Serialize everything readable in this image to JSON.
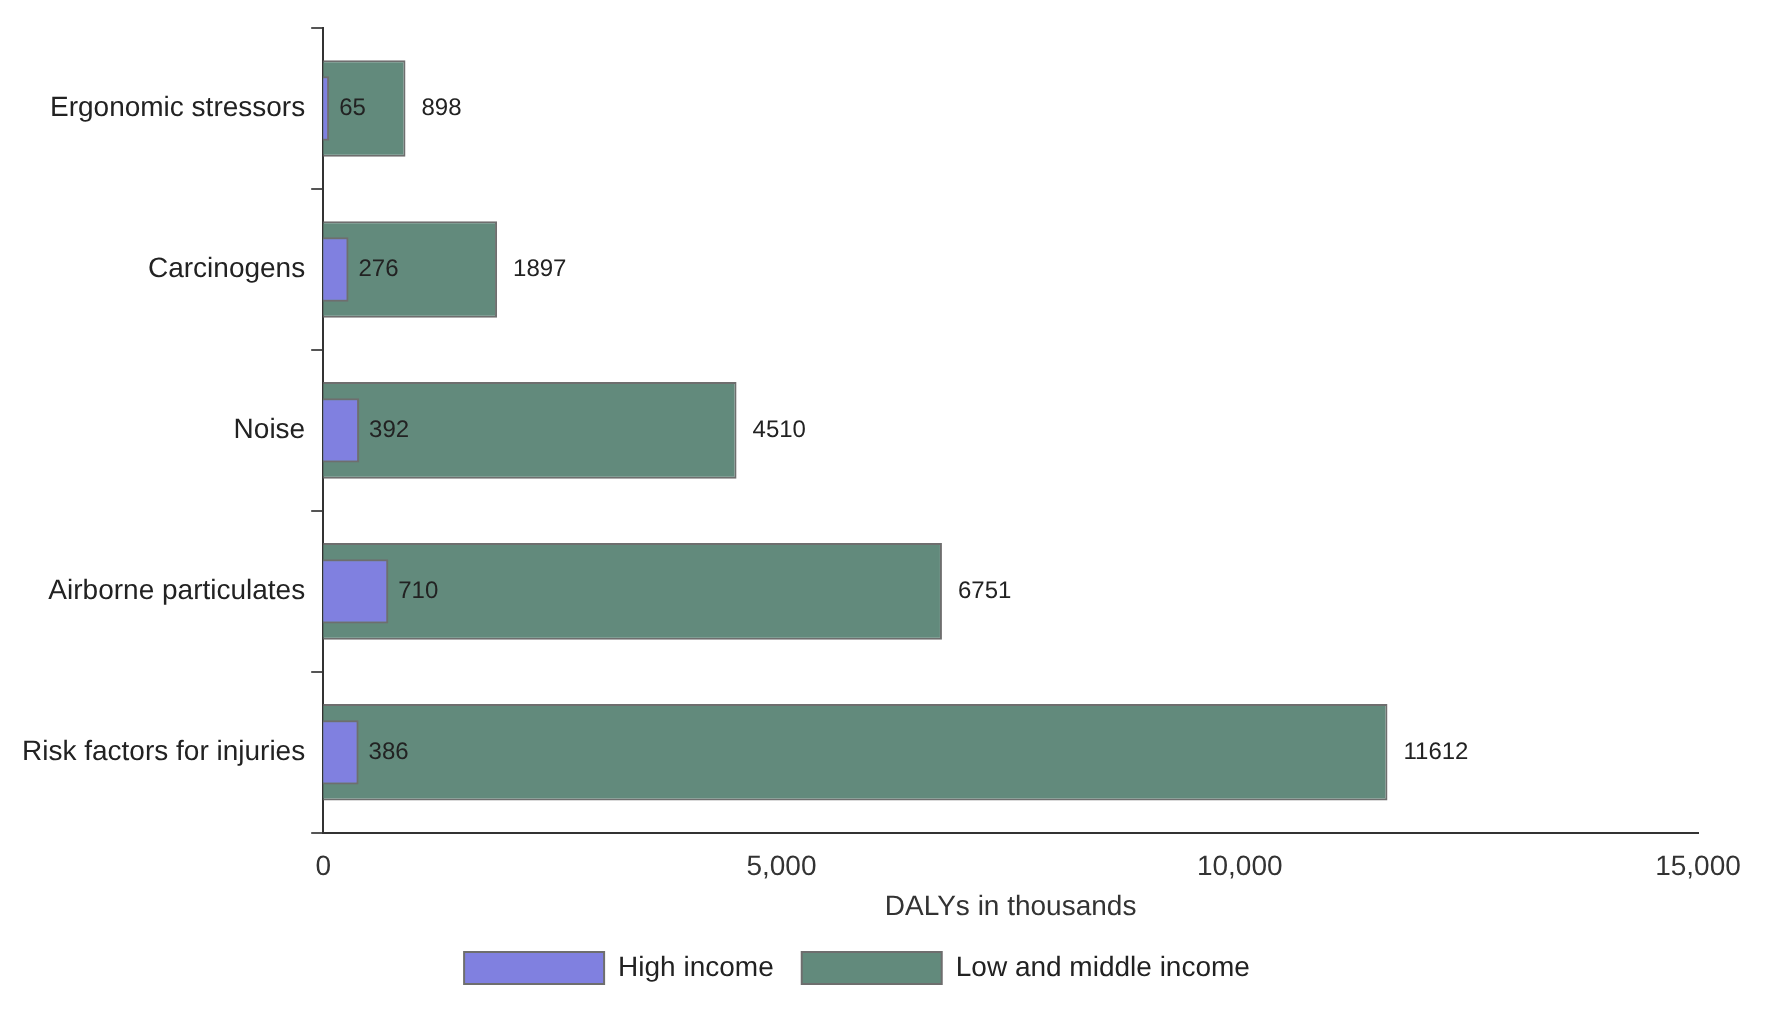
{
  "chart_data": {
    "type": "bar",
    "orientation": "horizontal",
    "categories": [
      "Ergonomic stressors",
      "Carcinogens",
      "Noise",
      "Airborne particulates",
      "Risk factors for injuries"
    ],
    "series": [
      {
        "name": "High income",
        "color": "#8080e0",
        "values": [
          65,
          276,
          392,
          710,
          386
        ]
      },
      {
        "name": "Low and middle income",
        "color": "#628a7c",
        "values": [
          898,
          1897,
          4510,
          6751,
          11612
        ]
      }
    ],
    "xlabel": "DALYs in thousands",
    "xlim": [
      0,
      15000
    ],
    "xticks": [
      {
        "value": 0,
        "label": "0"
      },
      {
        "value": 5000,
        "label": "5,000"
      },
      {
        "value": 10000,
        "label": "10,000"
      },
      {
        "value": 15000,
        "label": "15,000"
      }
    ],
    "data_labels": true,
    "grid": false,
    "legend": "bottom"
  }
}
